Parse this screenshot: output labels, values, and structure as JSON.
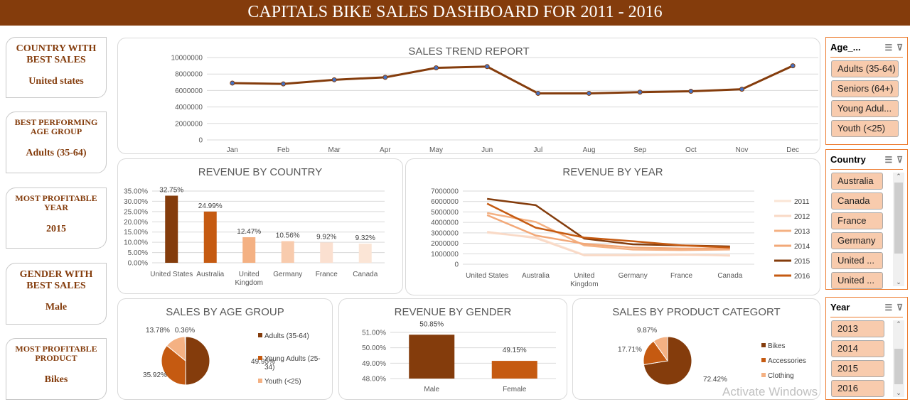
{
  "header": {
    "title": "CAPITALS BIKE SALES DASHBOARD FOR 2011 - 2016"
  },
  "kpis": [
    {
      "title": "COUNTRY WITH BEST SALES",
      "value": "United states"
    },
    {
      "title": "BEST PERFORMING AGE GROUP",
      "value": "Adults (35-64)"
    },
    {
      "title": "MOST PROFITABLE YEAR",
      "value": "2015"
    },
    {
      "title": "GENDER WITH BEST SALES",
      "value": "Male"
    },
    {
      "title": "MOST PROFITABLE PRODUCT",
      "value": "Bikes"
    }
  ],
  "colors": {
    "brand": "#843C0C",
    "orange": "#C55A11",
    "light": "#F4B183",
    "lighter": "#F8CBAD",
    "slicer_border": "#ED7D31"
  },
  "slicers": [
    {
      "title": "Age_...",
      "items": [
        "Adults (35-64)",
        "Seniors (64+)",
        "Young Adul...",
        "Youth (<25)"
      ]
    },
    {
      "title": "Country",
      "items": [
        "Australia",
        "Canada",
        "France",
        "Germany",
        "United ...",
        "United ..."
      ]
    },
    {
      "title": "Year",
      "items": [
        "2013",
        "2014",
        "2015",
        "2016"
      ]
    }
  ],
  "watermark": "Activate Windows",
  "chart_data": [
    {
      "type": "line",
      "title": "SALES TREND REPORT",
      "categories": [
        "Jan",
        "Feb",
        "Mar",
        "Apr",
        "May",
        "Jun",
        "Jul",
        "Aug",
        "Sep",
        "Oct",
        "Nov",
        "Dec"
      ],
      "values": [
        6900000,
        6800000,
        7300000,
        7600000,
        8750000,
        8900000,
        5650000,
        5650000,
        5800000,
        5900000,
        6150000,
        9000000
      ],
      "ylim": [
        0,
        10000000
      ],
      "yticks": [
        "0",
        "2000000",
        "4000000",
        "6000000",
        "8000000",
        "10000000"
      ],
      "grid": true,
      "markers": true
    },
    {
      "type": "bar",
      "title": "REVENUE BY COUNTRY",
      "categories": [
        "United States",
        "Australia",
        "United Kingdom",
        "Germany",
        "France",
        "Canada"
      ],
      "values": [
        32.75,
        24.99,
        12.47,
        10.56,
        9.92,
        9.32
      ],
      "labels": [
        "32.75%",
        "24.99%",
        "12.47%",
        "10.56%",
        "9.92%",
        "9.32%"
      ],
      "ylim": [
        0,
        35
      ],
      "yticks": [
        "0.00%",
        "5.00%",
        "10.00%",
        "15.00%",
        "20.00%",
        "25.00%",
        "30.00%",
        "35.00%"
      ],
      "colors": [
        "#843C0C",
        "#C55A11",
        "#F4B183",
        "#F8CBAD",
        "#FBE0D0",
        "#FBE5D6"
      ]
    },
    {
      "type": "line",
      "title": "REVENUE BY YEAR",
      "categories": [
        "United States",
        "Australia",
        "United Kingdom",
        "Germany",
        "France",
        "Canada"
      ],
      "ylim": [
        0,
        7000000
      ],
      "yticks": [
        "0",
        "1000000",
        "2000000",
        "3000000",
        "4000000",
        "5000000",
        "6000000",
        "7000000"
      ],
      "legend": "right",
      "series": [
        {
          "name": "2011",
          "color": "#FBE5D6",
          "values": [
            3000000,
            2600000,
            900000,
            900000,
            950000,
            800000
          ]
        },
        {
          "name": "2012",
          "color": "#F9D9C6",
          "values": [
            3100000,
            2500000,
            850000,
            850000,
            900000,
            850000
          ]
        },
        {
          "name": "2013",
          "color": "#F4B183",
          "values": [
            4900000,
            4050000,
            1800000,
            1400000,
            1350000,
            1400000
          ]
        },
        {
          "name": "2014",
          "color": "#F2A878",
          "values": [
            4700000,
            2750000,
            1950000,
            1600000,
            1500000,
            1500000
          ]
        },
        {
          "name": "2015",
          "color": "#843C0C",
          "values": [
            6250000,
            5650000,
            2450000,
            1900000,
            1800000,
            1700000
          ]
        },
        {
          "name": "2016",
          "color": "#C55A11",
          "values": [
            5800000,
            3500000,
            2550000,
            2200000,
            1800000,
            1600000
          ]
        }
      ]
    },
    {
      "type": "pie",
      "title": "SALES BY AGE GROUP",
      "categories": [
        "Adults (35-64)",
        "Young Adults (25-34)",
        "Youth (<25)",
        "Seniors (64+)"
      ],
      "values": [
        49.95,
        35.92,
        13.78,
        0.36
      ],
      "labels": [
        "49.95%",
        "35.92%",
        "13.78%",
        "0.36%"
      ],
      "legend": [
        "Adults (35-64)",
        "Young Adults (25-34)",
        "Youth (<25)"
      ],
      "colors": [
        "#843C0C",
        "#C55A11",
        "#F4B183",
        "#FBE5D6"
      ]
    },
    {
      "type": "bar",
      "title": "REVENUE BY GENDER",
      "categories": [
        "Male",
        "Female"
      ],
      "values": [
        50.85,
        49.15
      ],
      "labels": [
        "50.85%",
        "49.15%"
      ],
      "ylim": [
        48,
        51
      ],
      "yticks": [
        "48.00%",
        "49.00%",
        "50.00%",
        "51.00%"
      ],
      "colors": [
        "#843C0C",
        "#C55A11"
      ]
    },
    {
      "type": "pie",
      "title": "SALES BY PRODUCT CATEGORT",
      "categories": [
        "Bikes",
        "Accessories",
        "Clothing"
      ],
      "values": [
        72.42,
        17.71,
        9.87
      ],
      "labels": [
        "72.42%",
        "17.71%",
        "9.87%"
      ],
      "legend": [
        "Bikes",
        "Accessories",
        "Clothing"
      ],
      "colors": [
        "#843C0C",
        "#C55A11",
        "#F4B183"
      ]
    }
  ]
}
